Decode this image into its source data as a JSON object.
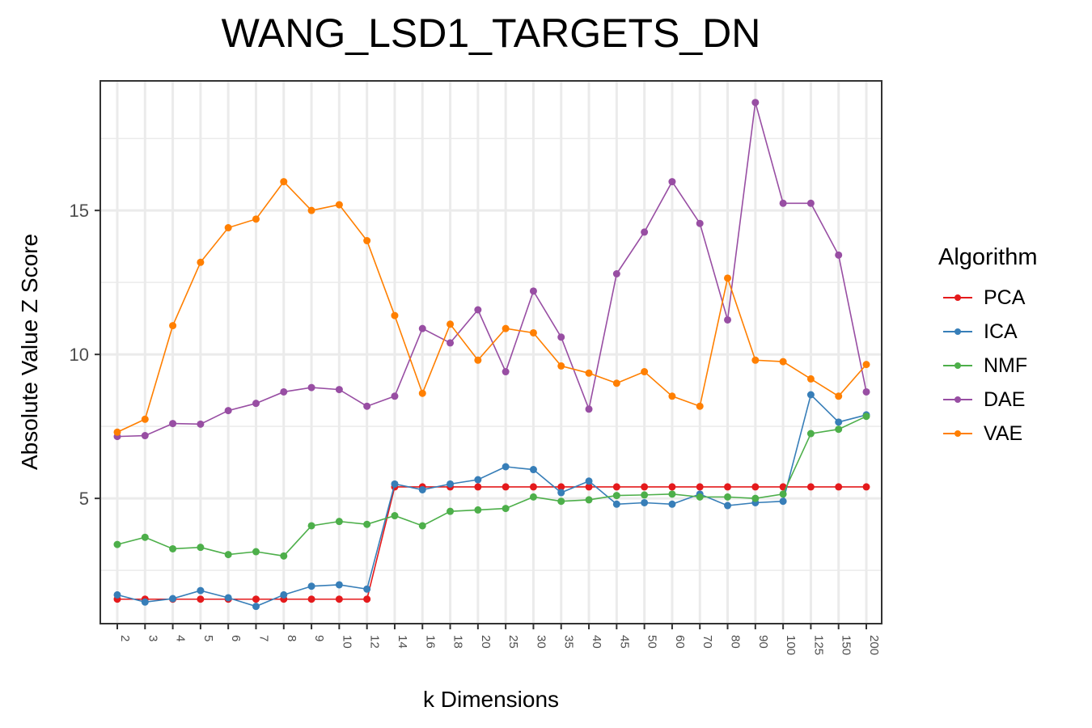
{
  "chart_data": {
    "type": "line",
    "title": "WANG_LSD1_TARGETS_DN",
    "xlabel": "k Dimensions",
    "ylabel": "Absolute Value Z Score",
    "categories": [
      "2",
      "3",
      "4",
      "5",
      "6",
      "7",
      "8",
      "9",
      "10",
      "12",
      "14",
      "16",
      "18",
      "20",
      "25",
      "30",
      "35",
      "40",
      "45",
      "50",
      "60",
      "70",
      "80",
      "90",
      "100",
      "125",
      "150",
      "200"
    ],
    "y_ticks": [
      5,
      10,
      15
    ],
    "ylim": [
      0.65,
      19.5
    ],
    "grid": true,
    "legend_title": "Algorithm",
    "legend_position": "right",
    "series": [
      {
        "name": "PCA",
        "color": "#e41a1c",
        "values": [
          1.5,
          1.5,
          1.5,
          1.5,
          1.5,
          1.5,
          1.5,
          1.5,
          1.5,
          1.5,
          5.4,
          5.4,
          5.4,
          5.4,
          5.4,
          5.4,
          5.4,
          5.4,
          5.4,
          5.4,
          5.4,
          5.4,
          5.4,
          5.4,
          5.4,
          5.4,
          5.4,
          5.4
        ]
      },
      {
        "name": "ICA",
        "color": "#377eb8",
        "values": [
          1.65,
          1.4,
          1.52,
          1.8,
          1.55,
          1.25,
          1.65,
          1.95,
          2.0,
          1.85,
          5.5,
          5.3,
          5.5,
          5.65,
          6.1,
          6.0,
          5.2,
          5.6,
          4.8,
          4.85,
          4.8,
          5.15,
          4.75,
          4.85,
          4.9,
          8.6,
          7.65,
          7.9
        ]
      },
      {
        "name": "NMF",
        "color": "#4daf4a",
        "values": [
          3.4,
          3.65,
          3.25,
          3.3,
          3.05,
          3.15,
          3.0,
          4.05,
          4.2,
          4.1,
          4.4,
          4.05,
          4.55,
          4.6,
          4.65,
          5.05,
          4.9,
          4.95,
          5.1,
          5.12,
          5.15,
          5.05,
          5.05,
          5.0,
          5.15,
          7.25,
          7.4,
          7.85
        ]
      },
      {
        "name": "DAE",
        "color": "#984ea3",
        "values": [
          7.15,
          7.18,
          7.6,
          7.58,
          8.05,
          8.3,
          8.7,
          8.85,
          8.78,
          8.2,
          8.55,
          10.9,
          10.4,
          11.55,
          9.4,
          12.2,
          10.6,
          8.1,
          12.8,
          14.25,
          16.0,
          14.55,
          11.2,
          18.75,
          15.25,
          15.25,
          13.45,
          8.7
        ]
      },
      {
        "name": "VAE",
        "color": "#ff7f00",
        "values": [
          7.3,
          7.75,
          11.0,
          13.2,
          14.4,
          14.7,
          16.0,
          15.0,
          15.2,
          13.95,
          11.35,
          8.65,
          11.05,
          9.8,
          10.9,
          10.75,
          9.6,
          9.35,
          9.0,
          9.4,
          8.55,
          8.2,
          12.65,
          9.8,
          9.75,
          9.15,
          8.55,
          9.65
        ]
      }
    ]
  }
}
